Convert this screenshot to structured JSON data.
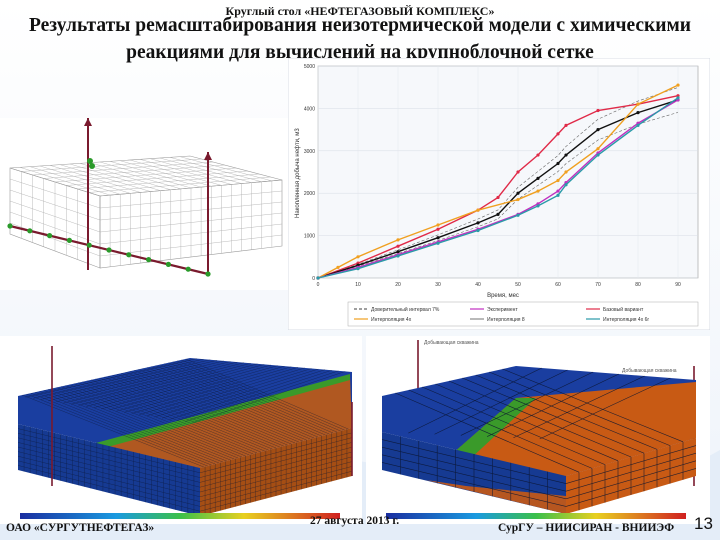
{
  "header": {
    "event": "Круглый стол «НЕФТЕГАЗОВЫЙ КОМПЛЕКС»",
    "title_line1": "Результаты ремасштабирования неизотермической модели с химическими",
    "title_line2": "реакциями для вычислений на крупноблочной сетке"
  },
  "colors": {
    "background": "#ffffff",
    "grid_line": "#888888",
    "well": "#7a1a2e",
    "oil_zone": "#b85a1a",
    "water_zone": "#1a3ea0",
    "front_green": "#3a9a2a"
  },
  "chart_data": {
    "type": "line",
    "title": "",
    "xlabel": "Время, мес",
    "ylabel": "Накопленная добыча нефти, м3",
    "xlim": [
      0,
      95
    ],
    "ylim": [
      0,
      5000
    ],
    "x_ticks": [
      "0",
      "10",
      "20",
      "30",
      "40",
      "50",
      "60",
      "70",
      "80",
      "90"
    ],
    "y_ticks": [
      "0",
      "1000",
      "2000",
      "3000",
      "4000",
      "5000"
    ],
    "legend": [
      "Доверительный интервал 7%",
      "Эксперимент",
      "Базовый вариант",
      "Интерполяция 4x",
      "Интерполяция 8",
      "Интерполяция 4x 6r"
    ],
    "series": [
      {
        "name": "Базовый вариант",
        "color": "#e02a48",
        "x": [
          0,
          10,
          20,
          30,
          40,
          45,
          50,
          55,
          60,
          62,
          70,
          80,
          90
        ],
        "y": [
          0,
          350,
          750,
          1150,
          1600,
          1900,
          2500,
          2900,
          3400,
          3600,
          3950,
          4100,
          4300
        ]
      },
      {
        "name": "Эксперимент",
        "color": "#111111",
        "x": [
          0,
          10,
          20,
          30,
          40,
          45,
          50,
          55,
          60,
          62,
          70,
          80,
          90
        ],
        "y": [
          0,
          300,
          620,
          950,
          1300,
          1500,
          2000,
          2350,
          2700,
          2900,
          3500,
          3900,
          4200
        ]
      },
      {
        "name": "Интерполяция 4x",
        "color": "#f0a020",
        "x": [
          0,
          5,
          10,
          20,
          30,
          40,
          50,
          55,
          60,
          62,
          70,
          80,
          90
        ],
        "y": [
          0,
          250,
          500,
          900,
          1250,
          1600,
          1850,
          2050,
          2300,
          2500,
          3050,
          4100,
          4550
        ]
      },
      {
        "name": "Интерполяция 8",
        "color": "#c030c0",
        "x": [
          0,
          10,
          20,
          30,
          40,
          50,
          55,
          60,
          62,
          70,
          80,
          90
        ],
        "y": [
          0,
          250,
          550,
          850,
          1150,
          1500,
          1750,
          2050,
          2250,
          2950,
          3650,
          4200
        ]
      },
      {
        "name": "Интерполяция 4x 6r",
        "color": "#2a9aa8",
        "x": [
          0,
          10,
          20,
          30,
          40,
          50,
          55,
          60,
          62,
          70,
          80,
          90
        ],
        "y": [
          0,
          220,
          520,
          820,
          1120,
          1480,
          1700,
          1950,
          2200,
          2900,
          3600,
          4250
        ]
      }
    ]
  },
  "legend_labels": {
    "left": "Добывающая скважина",
    "right": "Добывающая скважина"
  },
  "footer": {
    "left": "ОАО «СУРГУТНЕФТЕГАЗ»",
    "date": "27 августа 2013 г.",
    "right": "СурГУ – НИИСИРАН - ВНИИЭФ",
    "page": "13"
  }
}
